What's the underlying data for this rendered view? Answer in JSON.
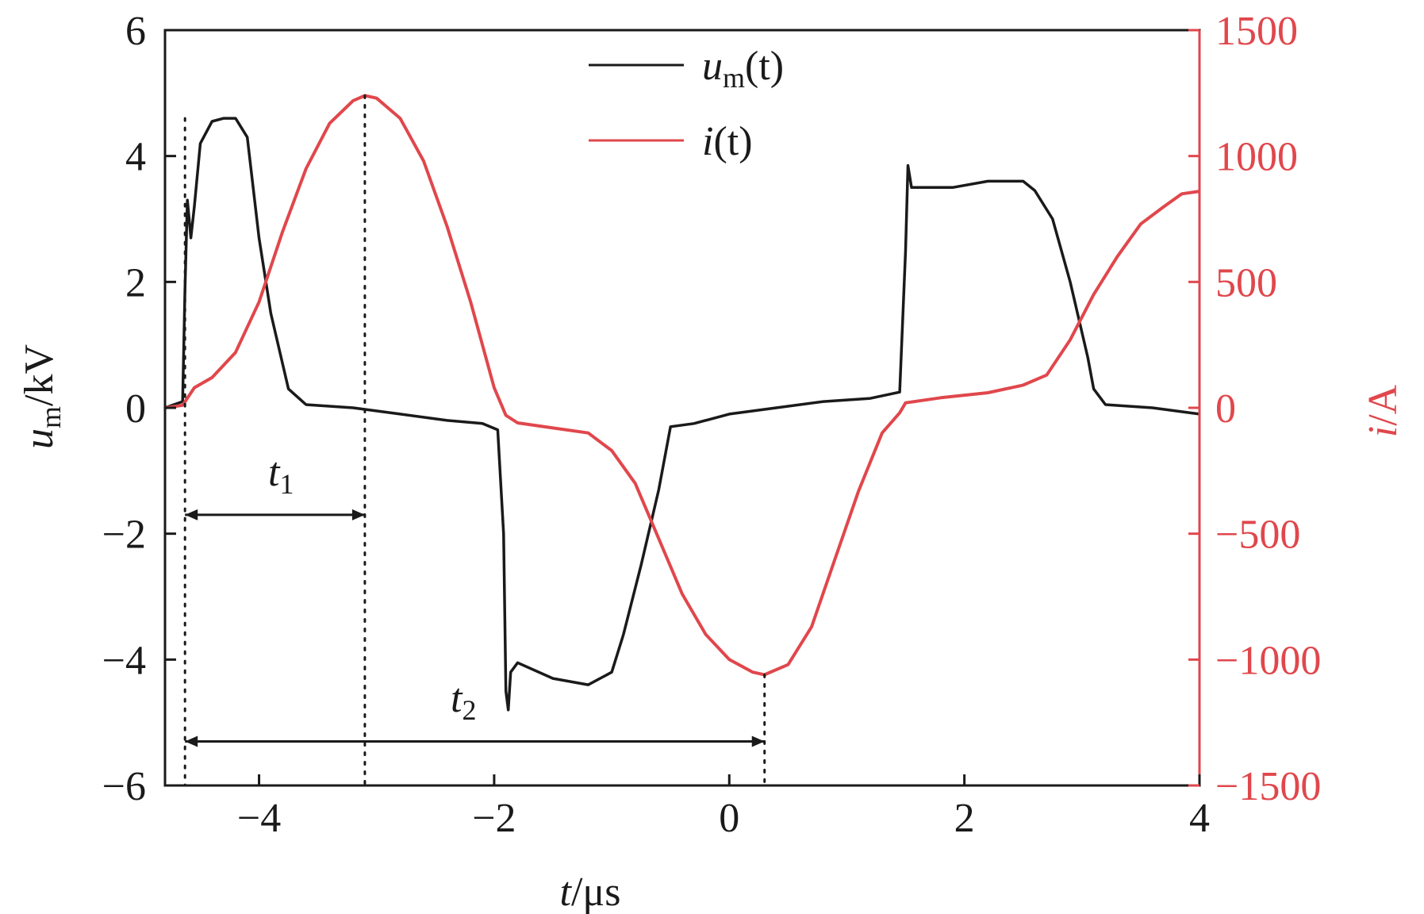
{
  "chart_data": {
    "type": "line",
    "xlabel": {
      "main": "t",
      "sep": "/",
      "unit": "μs"
    },
    "ylabel_left": {
      "main": "u",
      "sub": "m",
      "rest": "/kV"
    },
    "ylabel_right": {
      "main": "i",
      "rest": "/A"
    },
    "xlim": [
      -4.8,
      4
    ],
    "ylim_left": [
      -6,
      6
    ],
    "ylim_right": [
      -1500,
      1500
    ],
    "x_ticks": [
      -4,
      -2,
      0,
      2,
      4
    ],
    "x_tick_labels": [
      "−4",
      "−2",
      "0",
      "2",
      "4"
    ],
    "y_left_ticks": [
      -6,
      -4,
      -2,
      0,
      2,
      4,
      6
    ],
    "y_left_tick_labels": [
      "−6",
      "−4",
      "−2",
      "0",
      "2",
      "4",
      "6"
    ],
    "y_right_ticks": [
      -1500,
      -1000,
      -500,
      0,
      500,
      1000,
      1500
    ],
    "y_right_tick_labels": [
      "−1500",
      "−1000",
      "−500",
      "0",
      "500",
      "1000",
      "1500"
    ],
    "colors": {
      "um": "#1a1a1a",
      "i": "#e0474c",
      "right_axis": "#e0474c"
    },
    "grid": false,
    "legend_position": "top-center",
    "series": [
      {
        "name": "um(t)",
        "legend_main": "u",
        "legend_sub": "m",
        "legend_rest": "(t)",
        "axis": "left",
        "x": [
          -4.8,
          -4.65,
          -4.63,
          -4.61,
          -4.58,
          -4.55,
          -4.5,
          -4.4,
          -4.3,
          -4.2,
          -4.1,
          -4.05,
          -4.0,
          -3.9,
          -3.75,
          -3.6,
          -3.2,
          -2.8,
          -2.4,
          -2.1,
          -1.97,
          -1.92,
          -1.9,
          -1.88,
          -1.86,
          -1.8,
          -1.5,
          -1.2,
          -1.0,
          -0.9,
          -0.75,
          -0.6,
          -0.5,
          -0.3,
          0.0,
          0.4,
          0.8,
          1.2,
          1.45,
          1.5,
          1.52,
          1.55,
          1.6,
          1.9,
          2.2,
          2.5,
          2.6,
          2.75,
          2.9,
          3.05,
          3.1,
          3.2,
          3.6,
          4.0
        ],
        "y": [
          0.0,
          0.1,
          1.9,
          3.3,
          2.7,
          3.2,
          4.2,
          4.55,
          4.6,
          4.6,
          4.3,
          3.5,
          2.7,
          1.5,
          0.3,
          0.05,
          0.0,
          -0.1,
          -0.2,
          -0.25,
          -0.35,
          -2.0,
          -4.5,
          -4.8,
          -4.2,
          -4.05,
          -4.3,
          -4.4,
          -4.2,
          -3.6,
          -2.5,
          -1.3,
          -0.3,
          -0.25,
          -0.1,
          0.0,
          0.1,
          0.15,
          0.25,
          2.5,
          3.85,
          3.5,
          3.5,
          3.5,
          3.6,
          3.6,
          3.45,
          3.0,
          2.0,
          0.8,
          0.3,
          0.05,
          0.0,
          -0.1
        ]
      },
      {
        "name": "i(t)",
        "legend_main": "i",
        "legend_sub": "",
        "legend_rest": "(t)",
        "axis": "right",
        "x": [
          -4.8,
          -4.65,
          -4.55,
          -4.4,
          -4.2,
          -4.0,
          -3.8,
          -3.6,
          -3.4,
          -3.2,
          -3.1,
          -3.0,
          -2.8,
          -2.6,
          -2.4,
          -2.2,
          -2.0,
          -1.9,
          -1.8,
          -1.5,
          -1.2,
          -1.0,
          -0.8,
          -0.6,
          -0.4,
          -0.2,
          0.0,
          0.2,
          0.3,
          0.5,
          0.7,
          0.9,
          1.1,
          1.3,
          1.45,
          1.5,
          1.8,
          2.2,
          2.5,
          2.7,
          2.9,
          3.1,
          3.3,
          3.5,
          3.7,
          3.85,
          4.0
        ],
        "y": [
          0,
          10,
          80,
          120,
          220,
          420,
          700,
          950,
          1130,
          1220,
          1240,
          1230,
          1150,
          980,
          720,
          420,
          80,
          -30,
          -60,
          -80,
          -100,
          -170,
          -300,
          -520,
          -740,
          -900,
          -1000,
          -1050,
          -1060,
          -1020,
          -870,
          -600,
          -330,
          -100,
          -20,
          20,
          40,
          60,
          90,
          130,
          270,
          450,
          600,
          730,
          800,
          850,
          860
        ]
      }
    ],
    "annotations": [
      {
        "main": "t",
        "sub": "1"
      },
      {
        "main": "t",
        "sub": "2"
      }
    ]
  }
}
